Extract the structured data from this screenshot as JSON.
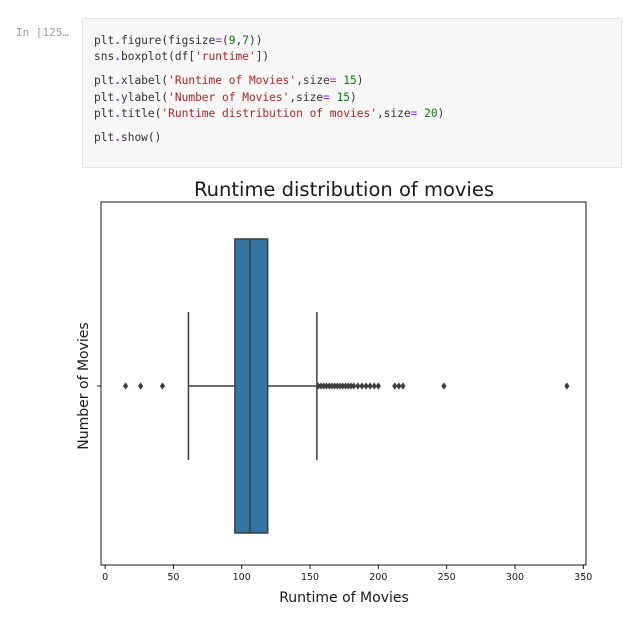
{
  "cell": {
    "prompt": "In [125…",
    "code_lines": [
      {
        "segments": [
          {
            "t": "plt",
            "c": ""
          },
          {
            "t": ".",
            "c": "dot"
          },
          {
            "t": "figure(figsize",
            "c": ""
          },
          {
            "t": "=",
            "c": "op"
          },
          {
            "t": "(",
            "c": ""
          },
          {
            "t": "9",
            "c": "num"
          },
          {
            "t": ",",
            "c": ""
          },
          {
            "t": "7",
            "c": "num"
          },
          {
            "t": "))",
            "c": ""
          }
        ]
      },
      {
        "segments": [
          {
            "t": "sns",
            "c": ""
          },
          {
            "t": ".",
            "c": "dot"
          },
          {
            "t": "boxplot(df[",
            "c": ""
          },
          {
            "t": "'runtime'",
            "c": "str"
          },
          {
            "t": "])",
            "c": ""
          }
        ]
      },
      {
        "gap": true,
        "segments": []
      },
      {
        "segments": [
          {
            "t": "plt",
            "c": ""
          },
          {
            "t": ".",
            "c": "dot"
          },
          {
            "t": "xlabel(",
            "c": ""
          },
          {
            "t": "'Runtime of Movies'",
            "c": "str"
          },
          {
            "t": ",size",
            "c": ""
          },
          {
            "t": "=",
            "c": "op"
          },
          {
            "t": " ",
            "c": ""
          },
          {
            "t": "15",
            "c": "num"
          },
          {
            "t": ")",
            "c": ""
          }
        ]
      },
      {
        "segments": [
          {
            "t": "plt",
            "c": ""
          },
          {
            "t": ".",
            "c": "dot"
          },
          {
            "t": "ylabel(",
            "c": ""
          },
          {
            "t": "'Number of Movies'",
            "c": "str"
          },
          {
            "t": ",size",
            "c": ""
          },
          {
            "t": "=",
            "c": "op"
          },
          {
            "t": " ",
            "c": ""
          },
          {
            "t": "15",
            "c": "num"
          },
          {
            "t": ")",
            "c": ""
          }
        ]
      },
      {
        "segments": [
          {
            "t": "plt",
            "c": ""
          },
          {
            "t": ".",
            "c": "dot"
          },
          {
            "t": "title(",
            "c": ""
          },
          {
            "t": "'Runtime distribution of movies'",
            "c": "str"
          },
          {
            "t": ",size",
            "c": ""
          },
          {
            "t": "=",
            "c": "op"
          },
          {
            "t": " ",
            "c": ""
          },
          {
            "t": "20",
            "c": "num"
          },
          {
            "t": ")",
            "c": ""
          }
        ]
      },
      {
        "gap": true,
        "segments": []
      },
      {
        "segments": [
          {
            "t": "plt",
            "c": ""
          },
          {
            "t": ".",
            "c": "dot"
          },
          {
            "t": "show()",
            "c": ""
          }
        ]
      }
    ]
  },
  "chart_data": {
    "type": "box",
    "title": "Runtime distribution of movies",
    "xlabel": "Runtime of Movies",
    "ylabel": "Number of Movies",
    "xlim": [
      -3,
      352
    ],
    "xticks": [
      0,
      50,
      100,
      150,
      200,
      250,
      300,
      350
    ],
    "grid": false,
    "box_color": "#3274a1",
    "box": {
      "whisker_low": 61,
      "q1": 95,
      "median": 106,
      "q3": 119,
      "whisker_high": 155
    },
    "outliers": [
      15,
      26,
      42,
      156,
      158,
      160,
      162,
      164,
      166,
      168,
      170,
      172,
      174,
      176,
      178,
      180,
      182,
      185,
      188,
      191,
      194,
      197,
      200,
      212,
      215,
      218,
      248,
      338
    ]
  }
}
